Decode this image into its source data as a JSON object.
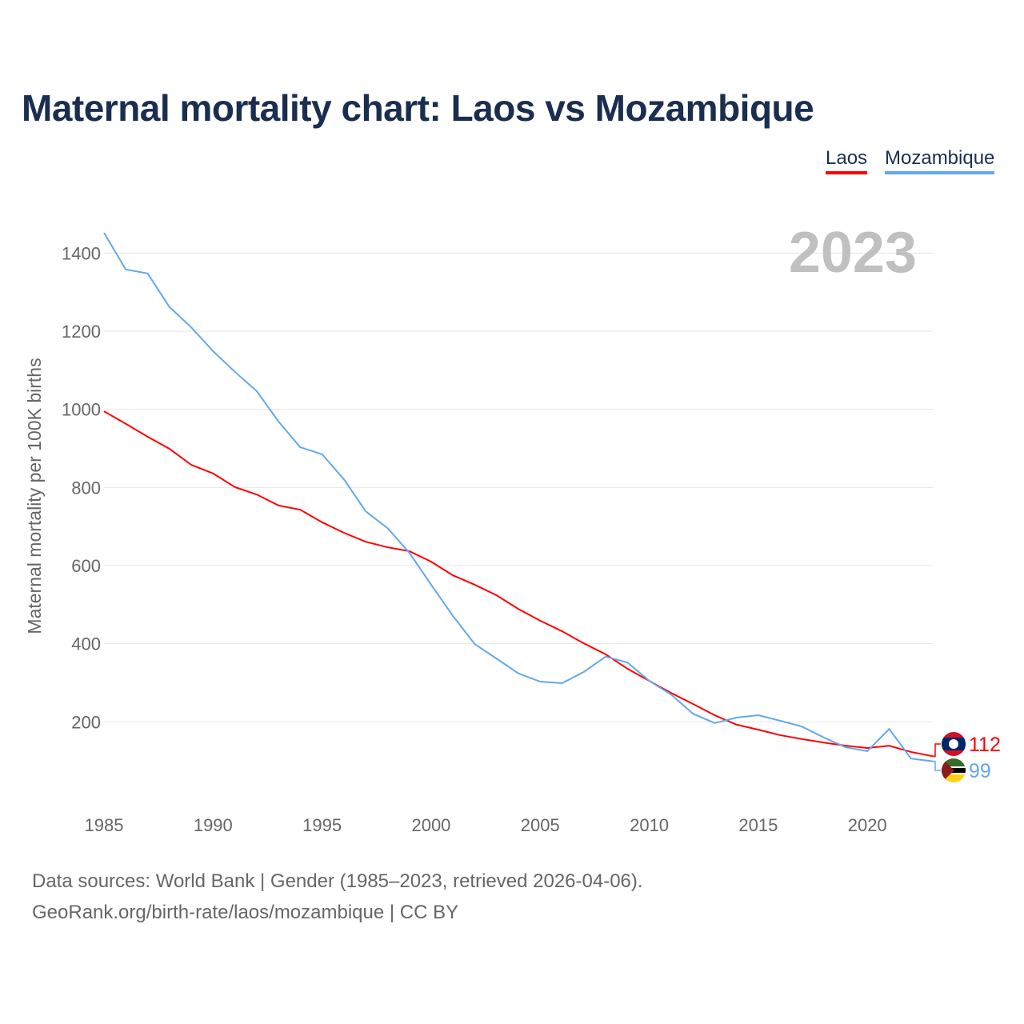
{
  "chart_data": {
    "type": "line",
    "title": "Maternal mortality chart: Laos vs Mozambique",
    "xlabel": "",
    "ylabel": "Maternal mortality per 100K births",
    "year_label": "2023",
    "xlim": [
      1985,
      2023
    ],
    "ylim": [
      0,
      1500
    ],
    "x_ticks": [
      1985,
      1990,
      1995,
      2000,
      2005,
      2010,
      2015,
      2020
    ],
    "y_ticks": [
      200,
      400,
      600,
      800,
      1000,
      1200,
      1400
    ],
    "grid": true,
    "legend_position": "top-right",
    "x": [
      1985,
      1986,
      1987,
      1988,
      1989,
      1990,
      1991,
      1992,
      1993,
      1994,
      1995,
      1996,
      1997,
      1998,
      1999,
      2000,
      2001,
      2002,
      2003,
      2004,
      2005,
      2006,
      2007,
      2008,
      2009,
      2010,
      2011,
      2012,
      2013,
      2014,
      2015,
      2016,
      2017,
      2018,
      2019,
      2020,
      2021,
      2022,
      2023
    ],
    "series": [
      {
        "name": "Laos",
        "color": "#ff0000",
        "end_label": "112",
        "values": [
          995,
          963,
          930,
          899,
          858,
          836,
          801,
          782,
          754,
          743,
          711,
          684,
          661,
          647,
          637,
          610,
          575,
          551,
          524,
          489,
          459,
          432,
          401,
          373,
          336,
          305,
          274,
          246,
          217,
          193,
          180,
          166,
          156,
          147,
          139,
          133,
          139,
          123,
          112
        ]
      },
      {
        "name": "Mozambique",
        "color": "#62a8ec",
        "end_label": "99",
        "values": [
          1452,
          1358,
          1348,
          1262,
          1210,
          1149,
          1096,
          1047,
          969,
          903,
          885,
          821,
          739,
          696,
          633,
          551,
          471,
          399,
          362,
          324,
          303,
          299,
          328,
          367,
          352,
          305,
          270,
          221,
          197,
          211,
          217,
          203,
          188,
          160,
          135,
          125,
          182,
          106,
          99
        ]
      }
    ]
  },
  "footer": {
    "line1": "Data sources: World Bank | Gender (1985–2023, retrieved 2026-04-06).",
    "line2": "GeoRank.org/birth-rate/laos/mozambique | CC BY"
  }
}
